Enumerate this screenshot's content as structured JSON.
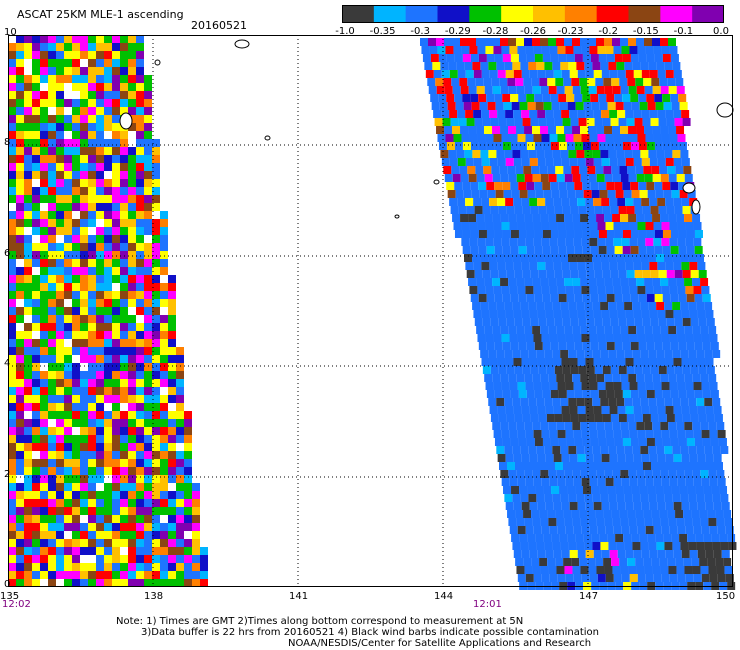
{
  "header": {
    "title": "ASCAT 25KM MLE-1 ascending",
    "date": "20160521"
  },
  "colorbar": {
    "colors": [
      "#3a3a3a",
      "#00b4ff",
      "#1e74ff",
      "#1010c8",
      "#00c000",
      "#ffff00",
      "#ffc000",
      "#ff8000",
      "#ff0000",
      "#8b4513",
      "#ff00ff",
      "#8000b0"
    ],
    "labels": [
      "-1.0",
      "-0.35",
      "-0.3",
      "-0.29",
      "-0.28",
      "-0.26",
      "-0.23",
      "-0.2",
      "-0.15",
      "-0.1",
      "0.0"
    ]
  },
  "map": {
    "lon_ticks": [
      "135",
      "138",
      "141",
      "144",
      "147",
      "150"
    ],
    "lat_ticks": [
      "10",
      "8",
      "6",
      "4",
      "2",
      "0"
    ],
    "swath_times": [
      "12:02",
      "12:01"
    ]
  },
  "footer": {
    "note1": "Note: 1) Times are GMT 2)Times along bottom correspond to measurement at 5N",
    "note2": "3)Data buffer is 22 hrs from 20160521 4) Black wind barbs indicate possible contamination",
    "note3": "NOAA/NESDIS/Center for Satellite Applications and Research"
  }
}
